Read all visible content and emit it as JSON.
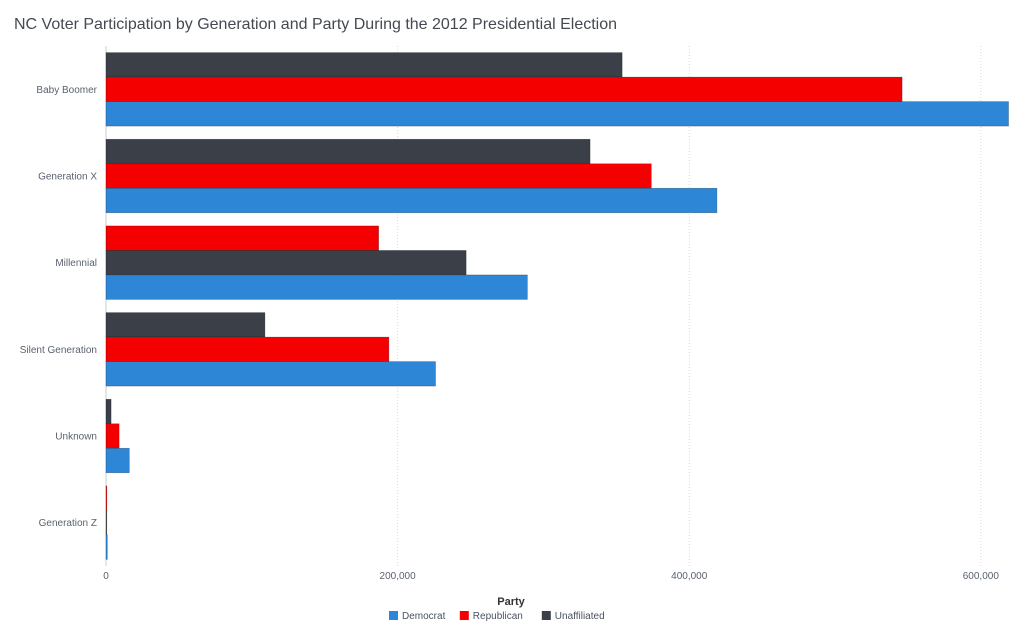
{
  "chart_data": {
    "type": "bar",
    "orientation": "horizontal",
    "title": "NC Voter Participation by Generation and Party During the 2012 Presidential Election",
    "legend": {
      "title": "Party",
      "placement": "bottom-center"
    },
    "xlim": [
      0,
      620000
    ],
    "x_ticks": [
      0,
      200000,
      400000,
      600000
    ],
    "x_tick_labels": [
      "0",
      "200,000",
      "400,000",
      "600,000"
    ],
    "grid": true,
    "colors": {
      "Democrat": "#2d87d6",
      "Republican": "#f50000",
      "Unaffiliated": "#3a3f48"
    },
    "legend_order": [
      "Democrat",
      "Republican",
      "Unaffiliated"
    ],
    "groups": [
      {
        "category": "Baby Boomer",
        "bars": [
          {
            "party": "Unaffiliated",
            "value": 354000
          },
          {
            "party": "Republican",
            "value": 546000
          },
          {
            "party": "Democrat",
            "value": 619000
          }
        ]
      },
      {
        "category": "Generation X",
        "bars": [
          {
            "party": "Unaffiliated",
            "value": 332000
          },
          {
            "party": "Republican",
            "value": 374000
          },
          {
            "party": "Democrat",
            "value": 419000
          }
        ]
      },
      {
        "category": "Millennial",
        "bars": [
          {
            "party": "Republican",
            "value": 187000
          },
          {
            "party": "Unaffiliated",
            "value": 247000
          },
          {
            "party": "Democrat",
            "value": 289000
          }
        ]
      },
      {
        "category": "Silent Generation",
        "bars": [
          {
            "party": "Unaffiliated",
            "value": 109000
          },
          {
            "party": "Republican",
            "value": 194000
          },
          {
            "party": "Democrat",
            "value": 226000
          }
        ]
      },
      {
        "category": "Unknown",
        "bars": [
          {
            "party": "Unaffiliated",
            "value": 3500
          },
          {
            "party": "Republican",
            "value": 9000
          },
          {
            "party": "Democrat",
            "value": 16000
          }
        ]
      },
      {
        "category": "Generation Z",
        "bars": [
          {
            "party": "Republican",
            "value": 600
          },
          {
            "party": "Unaffiliated",
            "value": 400
          },
          {
            "party": "Democrat",
            "value": 900
          }
        ]
      }
    ]
  }
}
